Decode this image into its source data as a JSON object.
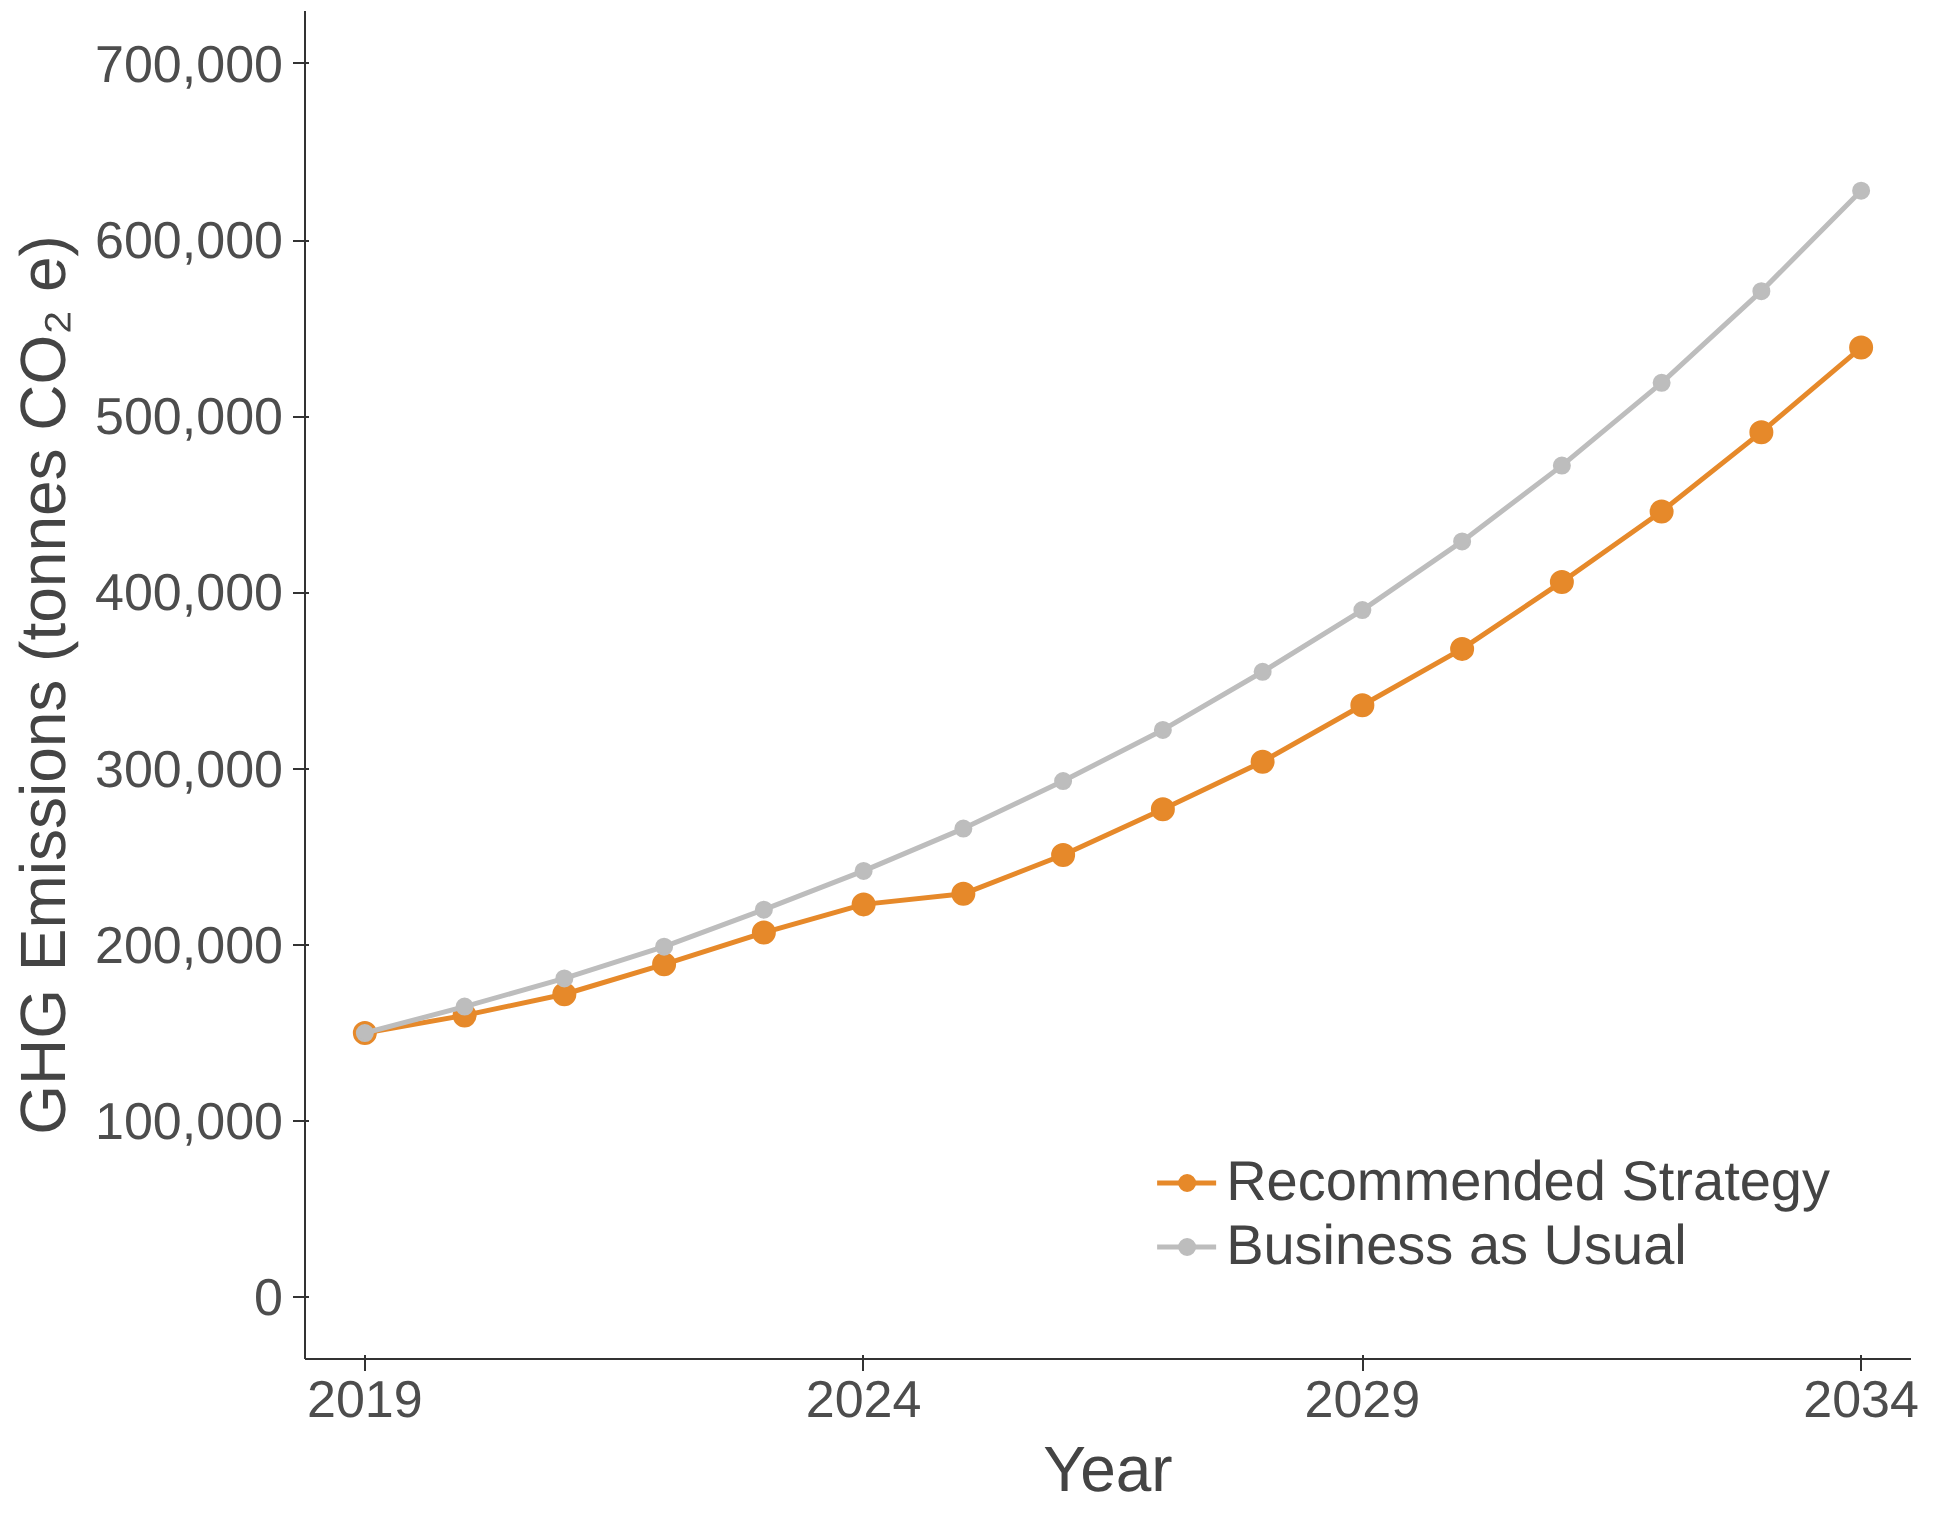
{
  "chart_data": {
    "type": "line",
    "xlabel": "Year",
    "ylabel": "GHG Emissions (tonnes CO₂ e)",
    "x": [
      2019,
      2020,
      2021,
      2022,
      2023,
      2024,
      2025,
      2026,
      2027,
      2028,
      2029,
      2030,
      2031,
      2032,
      2033,
      2034
    ],
    "series": [
      {
        "name": "Recommended Strategy",
        "color": "#e6892a",
        "values": [
          150000,
          160000,
          172000,
          189000,
          207000,
          223000,
          229000,
          251000,
          277000,
          304000,
          336000,
          368000,
          406000,
          446000,
          491000,
          539000
        ]
      },
      {
        "name": "Business as Usual",
        "color": "#bdbdbd",
        "values": [
          150000,
          165000,
          181000,
          199000,
          220000,
          242000,
          266000,
          293000,
          322000,
          355000,
          390000,
          429000,
          472000,
          519000,
          571000,
          628000
        ]
      }
    ],
    "xlim": [
      2018.4,
      2034.5
    ],
    "ylim": [
      -35000,
      730000
    ],
    "xticks": [
      2019,
      2024,
      2029,
      2034
    ],
    "yticks": [
      {
        "value": 0,
        "label": "0"
      },
      {
        "value": 100000,
        "label": "100,000"
      },
      {
        "value": 200000,
        "label": "200,000"
      },
      {
        "value": 300000,
        "label": "300,000"
      },
      {
        "value": 400000,
        "label": "400,000"
      },
      {
        "value": 500000,
        "label": "500,000"
      },
      {
        "value": 600000,
        "label": "600,000"
      },
      {
        "value": 700000,
        "label": "700,000"
      }
    ],
    "grid": false,
    "legend": "bottom right",
    "marker": "circle",
    "line_style": "solid"
  }
}
